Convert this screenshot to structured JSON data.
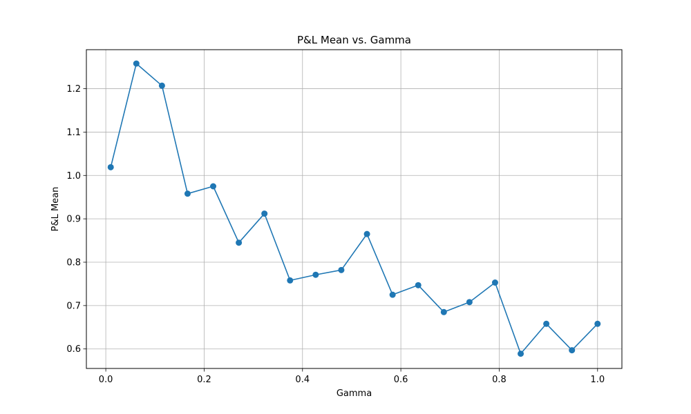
{
  "chart_data": {
    "type": "line",
    "title": "P&L Mean vs. Gamma",
    "xlabel": "Gamma",
    "ylabel": "P&L Mean",
    "xlim": [
      -0.0395,
      1.0495
    ],
    "ylim": [
      0.555,
      1.29
    ],
    "xticks": [
      0.0,
      0.2,
      0.4,
      0.6,
      0.8,
      1.0
    ],
    "xtick_labels": [
      "0.0",
      "0.2",
      "0.4",
      "0.6",
      "0.8",
      "1.0"
    ],
    "yticks": [
      0.6,
      0.7,
      0.8,
      0.9,
      1.0,
      1.1,
      1.2
    ],
    "ytick_labels": [
      "0.6",
      "0.7",
      "0.8",
      "0.9",
      "1.0",
      "1.1",
      "1.2"
    ],
    "grid": true,
    "color": "#1f77b4",
    "marker": "circle",
    "series": [
      {
        "x": [
          0.01,
          0.0621,
          0.1142,
          0.1663,
          0.2184,
          0.2705,
          0.3226,
          0.3747,
          0.4268,
          0.4789,
          0.5311,
          0.5832,
          0.6353,
          0.6874,
          0.7395,
          0.7916,
          0.8437,
          0.8958,
          0.9479,
          1.0
        ],
        "y": [
          1.019,
          1.258,
          1.207,
          0.958,
          0.975,
          0.845,
          0.912,
          0.758,
          0.771,
          0.782,
          0.865,
          0.725,
          0.747,
          0.685,
          0.708,
          0.753,
          0.589,
          0.658,
          0.597,
          0.658
        ]
      }
    ]
  }
}
